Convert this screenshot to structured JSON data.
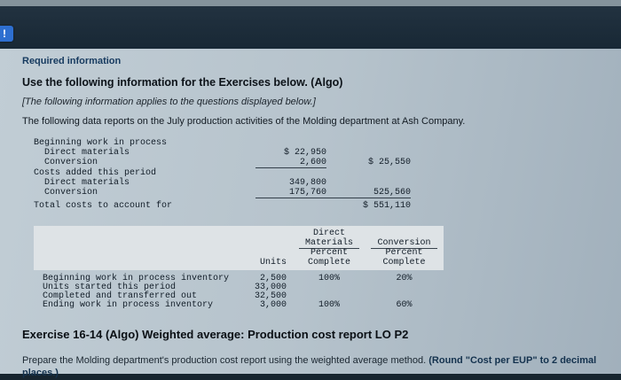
{
  "page": {
    "alert_icon": "!",
    "required_info": "Required information",
    "intro_title": "Use the following information for the Exercises below. (Algo)",
    "applies_note": "[The following information applies to the questions displayed below.]",
    "scenario": "The following data reports on the July production activities of the Molding department at Ash Company."
  },
  "cost_table": {
    "rows": [
      {
        "label": "Beginning work in process",
        "c1": "",
        "c2": ""
      },
      {
        "label": "Direct materials",
        "c1": "$ 22,950",
        "c2": ""
      },
      {
        "label": "Conversion",
        "c1": "2,600",
        "c2": "$ 25,550"
      },
      {
        "label": "Costs added this period",
        "c1": "",
        "c2": ""
      },
      {
        "label": "Direct materials",
        "c1": "349,800",
        "c2": ""
      },
      {
        "label": "Conversion",
        "c1": "175,760",
        "c2": "525,560"
      },
      {
        "label": "Total costs to account for",
        "c1": "",
        "c2": "$ 551,110"
      }
    ]
  },
  "units_table": {
    "header": {
      "direct": "Direct",
      "materials": "Materials",
      "conversion": "Conversion",
      "percent_dm": "Percent",
      "percent_conv": "Percent",
      "units": "Units",
      "complete_dm": "Complete",
      "complete_conv": "Complete"
    },
    "rows": [
      {
        "label": "Beginning work in process inventory",
        "units": "2,500",
        "dm": "100%",
        "conv": "20%"
      },
      {
        "label": "Units started this period",
        "units": "33,000",
        "dm": "",
        "conv": ""
      },
      {
        "label": "Completed and transferred out",
        "units": "32,500",
        "dm": "",
        "conv": ""
      },
      {
        "label": "Ending work in process inventory",
        "units": "3,000",
        "dm": "100%",
        "conv": "60%"
      }
    ]
  },
  "exercise": {
    "title": "Exercise 16-14 (Algo) Weighted average: Production cost report LO P2",
    "instruction": "Prepare the Molding department's production cost report using the weighted average method. ",
    "instruction_bold": "(Round \"Cost per EUP\" to 2 decimal places.)"
  }
}
